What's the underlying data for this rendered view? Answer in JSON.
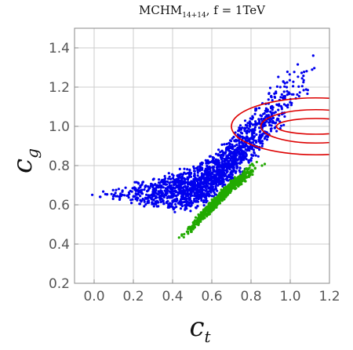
{
  "chart_data": {
    "type": "scatter",
    "title_main": "MCHM",
    "title_sub": "14+14",
    "title_rest": ",  f = 1TeV",
    "xlabel_main": "c",
    "xlabel_sub": "t",
    "ylabel_main": "c",
    "ylabel_sub": "g",
    "xlim": [
      -0.1,
      1.2
    ],
    "ylim": [
      0.2,
      1.5
    ],
    "xticks": [
      "0.0",
      "0.2",
      "0.4",
      "0.6",
      "0.8",
      "1.0",
      "1.2"
    ],
    "xtick_values": [
      0.0,
      0.2,
      0.4,
      0.6,
      0.8,
      1.0,
      1.2
    ],
    "yticks": [
      "0.2",
      "0.4",
      "0.6",
      "0.8",
      "1.0",
      "1.2",
      "1.4"
    ],
    "ytick_values": [
      0.2,
      0.4,
      0.6,
      0.8,
      1.0,
      1.2,
      1.4
    ],
    "grid": true,
    "series": [
      {
        "color": "#0000ee",
        "band": [
          [
            -0.08,
            0.64,
            0.66
          ],
          [
            0.0,
            0.63,
            0.67
          ],
          [
            0.1,
            0.62,
            0.69
          ],
          [
            0.2,
            0.6,
            0.72
          ],
          [
            0.3,
            0.57,
            0.74
          ],
          [
            0.4,
            0.55,
            0.78
          ],
          [
            0.5,
            0.56,
            0.8
          ],
          [
            0.6,
            0.62,
            0.86
          ],
          [
            0.7,
            0.7,
            0.96
          ],
          [
            0.8,
            0.8,
            1.08
          ],
          [
            0.9,
            0.9,
            1.22
          ],
          [
            1.0,
            1.02,
            1.32
          ],
          [
            1.1,
            1.15,
            1.42
          ],
          [
            1.18,
            1.25,
            1.48
          ]
        ],
        "count": 1800
      },
      {
        "color": "#22aa00",
        "band": [
          [
            0.4,
            0.37,
            0.42
          ],
          [
            0.5,
            0.46,
            0.52
          ],
          [
            0.6,
            0.56,
            0.63
          ],
          [
            0.7,
            0.66,
            0.73
          ],
          [
            0.8,
            0.74,
            0.81
          ],
          [
            0.9,
            0.8,
            0.86
          ]
        ],
        "count": 700
      }
    ],
    "contours": {
      "color": "#dd0000",
      "center": [
        1.13,
        1.0
      ],
      "radii": [
        [
          0.2,
          0.04
        ],
        [
          0.28,
          0.085
        ],
        [
          0.43,
          0.145
        ]
      ]
    }
  }
}
